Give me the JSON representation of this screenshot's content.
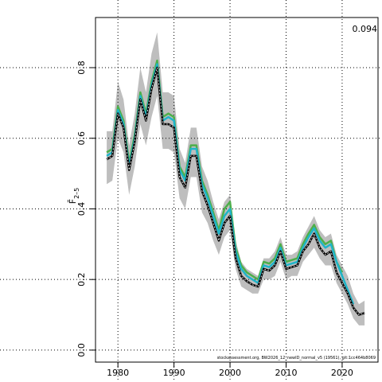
{
  "chart_data": {
    "type": "line",
    "ylabel": {
      "main": "F̄",
      "sub": "2–5"
    },
    "annotation": "0.094",
    "footer": "stockassessment.org, BW2026_12_newID_normal_v5 (19561), git:1cc464b8069",
    "x": [
      1978,
      1979,
      1980,
      1981,
      1982,
      1983,
      1984,
      1985,
      1986,
      1987,
      1988,
      1989,
      1990,
      1991,
      1992,
      1993,
      1994,
      1995,
      1996,
      1997,
      1998,
      1999,
      2000,
      2001,
      2002,
      2003,
      2004,
      2005,
      2006,
      2007,
      2008,
      2009,
      2010,
      2011,
      2012,
      2013,
      2014,
      2015,
      2016,
      2017,
      2018,
      2019,
      2020,
      2021,
      2022,
      2023,
      2024
    ],
    "band": {
      "color": "#bebebe",
      "lower": [
        0.47,
        0.48,
        0.6,
        0.56,
        0.44,
        0.52,
        0.64,
        0.58,
        0.66,
        0.72,
        0.57,
        0.57,
        0.56,
        0.43,
        0.4,
        0.49,
        0.49,
        0.39,
        0.36,
        0.31,
        0.27,
        0.32,
        0.34,
        0.23,
        0.18,
        0.17,
        0.16,
        0.16,
        0.2,
        0.2,
        0.21,
        0.25,
        0.2,
        0.21,
        0.21,
        0.25,
        0.27,
        0.29,
        0.26,
        0.24,
        0.24,
        0.19,
        0.16,
        0.13,
        0.09,
        0.07,
        0.07
      ],
      "upper": [
        0.62,
        0.62,
        0.76,
        0.71,
        0.58,
        0.67,
        0.8,
        0.73,
        0.84,
        0.9,
        0.73,
        0.73,
        0.72,
        0.57,
        0.53,
        0.63,
        0.63,
        0.52,
        0.48,
        0.42,
        0.37,
        0.42,
        0.44,
        0.31,
        0.25,
        0.23,
        0.22,
        0.21,
        0.26,
        0.26,
        0.28,
        0.32,
        0.27,
        0.27,
        0.28,
        0.32,
        0.35,
        0.38,
        0.34,
        0.32,
        0.33,
        0.27,
        0.24,
        0.21,
        0.16,
        0.13,
        0.14
      ]
    },
    "series": [
      {
        "color": "#4daf4a",
        "values": [
          0.56,
          0.57,
          0.69,
          0.65,
          0.53,
          0.61,
          0.73,
          0.67,
          0.76,
          0.82,
          0.66,
          0.67,
          0.66,
          0.52,
          0.49,
          0.58,
          0.58,
          0.48,
          0.44,
          0.39,
          0.34,
          0.4,
          0.42,
          0.29,
          0.24,
          0.22,
          0.21,
          0.2,
          0.25,
          0.245,
          0.26,
          0.3,
          0.25,
          0.255,
          0.26,
          0.3,
          0.33,
          0.355,
          0.32,
          0.3,
          0.31,
          0.25,
          0.22,
          null,
          null,
          null,
          null
        ]
      },
      {
        "color": "#1fb5c9",
        "values": [
          0.55,
          0.56,
          0.68,
          0.64,
          0.52,
          0.6,
          0.72,
          0.66,
          0.75,
          0.81,
          0.65,
          0.66,
          0.65,
          0.51,
          0.48,
          0.57,
          0.57,
          0.47,
          0.43,
          0.38,
          0.33,
          0.38,
          0.4,
          0.28,
          0.23,
          0.21,
          0.2,
          0.19,
          0.24,
          0.235,
          0.25,
          0.29,
          0.24,
          0.245,
          0.25,
          0.29,
          0.32,
          0.345,
          0.31,
          0.29,
          0.3,
          0.25,
          0.21,
          0.17,
          0.13,
          null,
          null
        ]
      },
      {
        "color": "#000000",
        "values": [
          0.54,
          0.55,
          0.67,
          0.63,
          0.51,
          0.59,
          0.71,
          0.65,
          0.74,
          0.8,
          0.64,
          0.64,
          0.63,
          0.49,
          0.46,
          0.55,
          0.55,
          0.45,
          0.41,
          0.36,
          0.31,
          0.36,
          0.38,
          0.26,
          0.21,
          0.195,
          0.185,
          0.18,
          0.23,
          0.225,
          0.24,
          0.28,
          0.23,
          0.235,
          0.24,
          0.28,
          0.3,
          0.33,
          0.29,
          0.27,
          0.28,
          0.22,
          0.19,
          0.16,
          0.12,
          0.1,
          0.105
        ]
      }
    ],
    "xlim": [
      1976,
      2026.4
    ],
    "ylim": [
      -0.034,
      0.942
    ],
    "xticks": [
      1980,
      1990,
      2000,
      2010,
      2020
    ],
    "yticks": [
      {
        "value": 0,
        "label": "0.0"
      },
      0.2,
      0.4,
      0.6,
      0.8
    ],
    "grid": true
  }
}
